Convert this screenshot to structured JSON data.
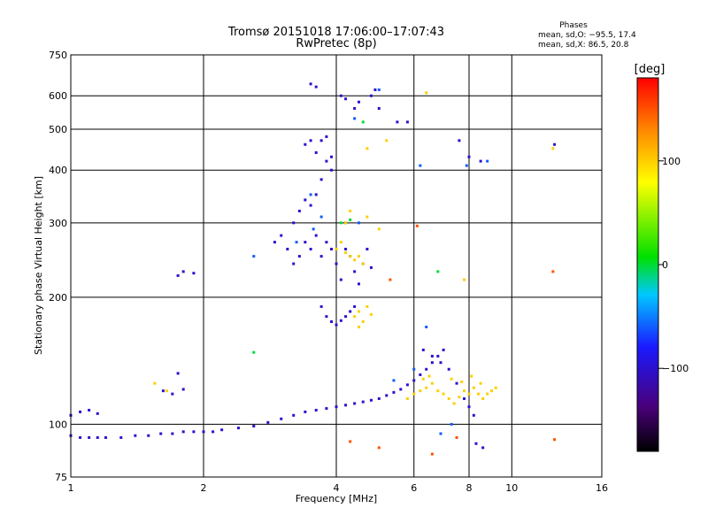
{
  "chart_data": {
    "type": "scatter",
    "title": "Tromsø 20151018 17:06:00–17:07:43",
    "subtitle": "RwPretec (8p)",
    "phase_info": {
      "heading": "Phases",
      "line_o": "mean, sd,O: −95.5, 17.4",
      "line_x": "mean, sd,X:  86.5, 20.8"
    },
    "xlabel": "Frequency [MHz]",
    "ylabel": "Stationary phase Virtual Height [km]",
    "x_scale": "log",
    "y_scale": "log",
    "xlim": [
      1,
      16
    ],
    "ylim": [
      75,
      750
    ],
    "x_ticks": [
      1,
      2,
      4,
      6,
      8,
      10,
      16
    ],
    "x_tick_labels": [
      "1",
      "2",
      "4",
      "6",
      "8",
      "10",
      "16"
    ],
    "y_ticks": [
      75,
      100,
      200,
      300,
      400,
      500,
      600,
      750
    ],
    "y_tick_labels": [
      "75",
      "100",
      "200",
      "300",
      "400",
      "500",
      "600",
      "750"
    ],
    "grid": true,
    "colorbar": {
      "label": "[deg]",
      "range": [
        -180,
        180
      ],
      "ticks": [
        100,
        0,
        -100
      ],
      "tick_labels": [
        "100",
        "0",
        "−100"
      ]
    },
    "series": [
      {
        "color_deg": -100,
        "points": [
          [
            1.0,
            94
          ],
          [
            1.05,
            93
          ],
          [
            1.1,
            93
          ],
          [
            1.15,
            93
          ],
          [
            1.2,
            93
          ],
          [
            1.3,
            93
          ],
          [
            1.4,
            94
          ],
          [
            1.5,
            94
          ],
          [
            1.6,
            95
          ],
          [
            1.7,
            95
          ],
          [
            1.8,
            96
          ],
          [
            1.9,
            96
          ],
          [
            2.0,
            96
          ],
          [
            2.1,
            96
          ],
          [
            2.2,
            97
          ],
          [
            2.4,
            98
          ],
          [
            2.6,
            99
          ],
          [
            2.8,
            101
          ],
          [
            3.0,
            103
          ],
          [
            3.2,
            105
          ],
          [
            3.4,
            107
          ],
          [
            3.6,
            108
          ],
          [
            3.8,
            109
          ],
          [
            4.0,
            110
          ],
          [
            4.2,
            111
          ],
          [
            4.4,
            112
          ],
          [
            4.6,
            113
          ],
          [
            4.8,
            114
          ],
          [
            5.0,
            115
          ],
          [
            5.2,
            117
          ],
          [
            5.4,
            119
          ],
          [
            5.6,
            121
          ],
          [
            5.8,
            124
          ],
          [
            6.0,
            127
          ],
          [
            6.2,
            131
          ],
          [
            6.4,
            135
          ],
          [
            6.6,
            140
          ],
          [
            6.8,
            145
          ],
          [
            7.0,
            150
          ],
          [
            1.0,
            105
          ],
          [
            1.05,
            107
          ],
          [
            1.1,
            108
          ],
          [
            1.15,
            106
          ],
          [
            1.62,
            120
          ],
          [
            1.7,
            118
          ],
          [
            1.75,
            132
          ],
          [
            1.8,
            121
          ],
          [
            1.75,
            225
          ],
          [
            1.8,
            230
          ],
          [
            1.9,
            228
          ],
          [
            2.9,
            270
          ],
          [
            3.0,
            280
          ],
          [
            3.1,
            260
          ],
          [
            3.2,
            240
          ],
          [
            3.3,
            250
          ],
          [
            3.4,
            270
          ],
          [
            3.5,
            260
          ],
          [
            3.6,
            280
          ],
          [
            3.7,
            250
          ],
          [
            3.8,
            270
          ],
          [
            3.9,
            260
          ],
          [
            4.0,
            240
          ],
          [
            4.1,
            220
          ],
          [
            4.2,
            260
          ],
          [
            4.3,
            250
          ],
          [
            4.4,
            230
          ],
          [
            4.5,
            215
          ],
          [
            4.6,
            240
          ],
          [
            4.7,
            260
          ],
          [
            4.8,
            235
          ],
          [
            3.2,
            300
          ],
          [
            3.3,
            320
          ],
          [
            3.4,
            340
          ],
          [
            3.5,
            330
          ],
          [
            3.6,
            350
          ],
          [
            3.7,
            380
          ],
          [
            3.8,
            420
          ],
          [
            3.9,
            400
          ],
          [
            3.4,
            460
          ],
          [
            3.5,
            470
          ],
          [
            3.6,
            440
          ],
          [
            3.7,
            470
          ],
          [
            3.8,
            480
          ],
          [
            3.9,
            430
          ],
          [
            3.5,
            640
          ],
          [
            3.6,
            630
          ],
          [
            4.1,
            600
          ],
          [
            4.2,
            590
          ],
          [
            4.4,
            560
          ],
          [
            4.5,
            580
          ],
          [
            4.8,
            600
          ],
          [
            4.9,
            620
          ],
          [
            5.0,
            560
          ],
          [
            3.7,
            190
          ],
          [
            3.8,
            180
          ],
          [
            3.9,
            175
          ],
          [
            4.0,
            172
          ],
          [
            4.1,
            176
          ],
          [
            4.2,
            180
          ],
          [
            4.3,
            185
          ],
          [
            4.4,
            190
          ],
          [
            5.5,
            520
          ],
          [
            5.8,
            520
          ],
          [
            6.3,
            150
          ],
          [
            6.6,
            145
          ],
          [
            6.9,
            140
          ],
          [
            7.2,
            135
          ],
          [
            7.5,
            125
          ],
          [
            7.8,
            115
          ],
          [
            8.0,
            110
          ],
          [
            8.2,
            105
          ],
          [
            7.6,
            470
          ],
          [
            8.0,
            430
          ],
          [
            8.5,
            420
          ],
          [
            12.5,
            460
          ],
          [
            8.3,
            90
          ],
          [
            8.6,
            88
          ]
        ]
      },
      {
        "color_deg": -60,
        "points": [
          [
            5.0,
            620
          ],
          [
            4.4,
            530
          ],
          [
            3.5,
            350
          ],
          [
            2.6,
            250
          ],
          [
            3.7,
            310
          ],
          [
            4.2,
            300
          ],
          [
            4.5,
            300
          ],
          [
            6.2,
            410
          ],
          [
            7.9,
            410
          ],
          [
            8.8,
            420
          ],
          [
            6.9,
            95
          ],
          [
            7.3,
            100
          ],
          [
            6.4,
            170
          ],
          [
            6.0,
            135
          ],
          [
            5.4,
            127
          ],
          [
            3.25,
            270
          ],
          [
            3.55,
            290
          ]
        ]
      },
      {
        "color_deg": 100,
        "points": [
          [
            4.0,
            260
          ],
          [
            4.1,
            270
          ],
          [
            4.2,
            255
          ],
          [
            4.3,
            250
          ],
          [
            4.4,
            245
          ],
          [
            4.5,
            250
          ],
          [
            4.6,
            240
          ],
          [
            4.2,
            300
          ],
          [
            4.3,
            320
          ],
          [
            4.4,
            180
          ],
          [
            4.5,
            185
          ],
          [
            4.6,
            175
          ],
          [
            4.7,
            190
          ],
          [
            4.8,
            182
          ],
          [
            4.5,
            170
          ],
          [
            4.7,
            310
          ],
          [
            5.0,
            290
          ],
          [
            5.8,
            115
          ],
          [
            6.0,
            118
          ],
          [
            6.2,
            120
          ],
          [
            6.4,
            122
          ],
          [
            6.6,
            125
          ],
          [
            6.8,
            120
          ],
          [
            7.0,
            118
          ],
          [
            7.2,
            115
          ],
          [
            7.4,
            112
          ],
          [
            7.6,
            116
          ],
          [
            7.8,
            120
          ],
          [
            8.0,
            118
          ],
          [
            8.2,
            122
          ],
          [
            8.4,
            118
          ],
          [
            8.6,
            115
          ],
          [
            8.8,
            118
          ],
          [
            9.0,
            120
          ],
          [
            9.2,
            122
          ],
          [
            6.3,
            128
          ],
          [
            6.5,
            130
          ],
          [
            7.3,
            128
          ],
          [
            7.7,
            126
          ],
          [
            8.1,
            130
          ],
          [
            8.5,
            125
          ],
          [
            7.8,
            220
          ],
          [
            6.4,
            610
          ],
          [
            1.55,
            125
          ],
          [
            1.65,
            120
          ],
          [
            4.7,
            450
          ],
          [
            5.2,
            470
          ],
          [
            12.4,
            450
          ]
        ]
      },
      {
        "color_deg": 0,
        "points": [
          [
            4.1,
            300
          ],
          [
            4.3,
            305
          ],
          [
            2.6,
            148
          ],
          [
            6.8,
            230
          ],
          [
            4.6,
            520
          ]
        ]
      },
      {
        "color_deg": 150,
        "points": [
          [
            4.3,
            91
          ],
          [
            5.0,
            88
          ],
          [
            6.6,
            85
          ],
          [
            7.5,
            93
          ],
          [
            12.5,
            92
          ],
          [
            5.3,
            220
          ],
          [
            6.1,
            295
          ],
          [
            12.4,
            230
          ]
        ]
      }
    ]
  }
}
